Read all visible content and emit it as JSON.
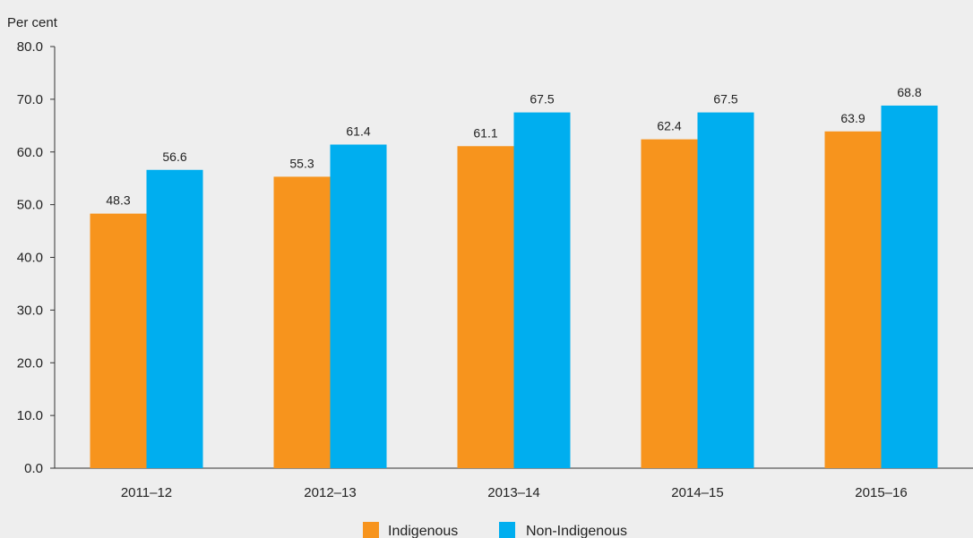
{
  "chart_data": {
    "type": "bar",
    "title": "",
    "xlabel": "",
    "ylabel": "Per cent",
    "ylim": [
      0,
      80
    ],
    "yticks": [
      "0.0",
      "10.0",
      "20.0",
      "30.0",
      "40.0",
      "50.0",
      "60.0",
      "70.0",
      "80.0"
    ],
    "categories": [
      "2011–12",
      "2012–13",
      "2013–14",
      "2014–15",
      "2015–16"
    ],
    "series": [
      {
        "name": "Indigenous",
        "color": "#f7941d",
        "values": [
          48.3,
          55.3,
          61.1,
          62.4,
          63.9
        ],
        "labels": [
          "48.3",
          "55.3",
          "61.1",
          "62.4",
          "63.9"
        ]
      },
      {
        "name": "Non-Indigenous",
        "color": "#00aeef",
        "values": [
          56.6,
          61.4,
          67.5,
          67.5,
          68.8
        ],
        "labels": [
          "56.6",
          "61.4",
          "67.5",
          "67.5",
          "68.8"
        ]
      }
    ],
    "grid": false,
    "legend": "bottom-center"
  }
}
